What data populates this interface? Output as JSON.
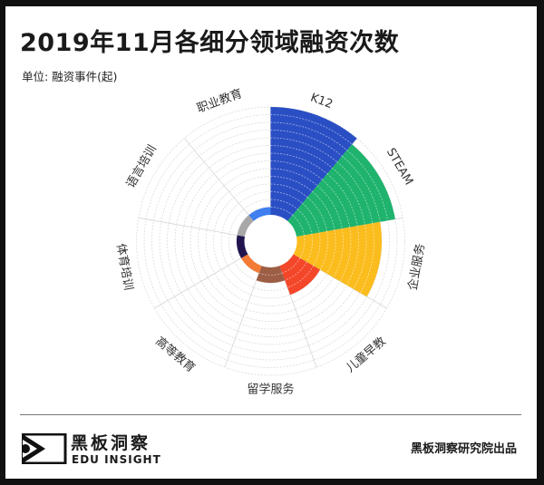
{
  "header": {
    "title": "2019年11月各细分领域融资次数",
    "unit": "单位: 融资事件(起)"
  },
  "chart_data": {
    "type": "polar-bar",
    "title": "2019年11月各细分领域融资次数",
    "subtitle": "单位: 融资事件(起)",
    "categories": [
      "K12",
      "STEAM",
      "企业服务",
      "儿童早教",
      "留学服务",
      "高等教育",
      "体育培训",
      "语言培训",
      "职业教育"
    ],
    "values": [
      14,
      13,
      11,
      4,
      2,
      1,
      1,
      1,
      1
    ],
    "colors": [
      "#2a4fc4",
      "#1fb36e",
      "#fbbc1e",
      "#f4472a",
      "#9c5e45",
      "#f47b35",
      "#22154f",
      "#a8a8a8",
      "#3f7ff0"
    ],
    "radial_max": 14,
    "grid": true,
    "legend": "none"
  },
  "footer": {
    "logo_cn": "黑板洞察",
    "logo_en": "EDU INSIGHT",
    "credit": "黑板洞察研究院出品"
  }
}
